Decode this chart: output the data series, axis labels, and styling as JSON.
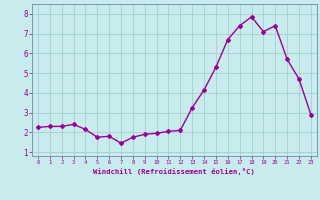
{
  "x": [
    0,
    1,
    2,
    3,
    4,
    5,
    6,
    7,
    8,
    9,
    10,
    11,
    12,
    13,
    14,
    15,
    16,
    17,
    18,
    19,
    20,
    21,
    22,
    23
  ],
  "y": [
    2.25,
    2.3,
    2.3,
    2.4,
    2.15,
    1.75,
    1.8,
    1.45,
    1.75,
    1.9,
    1.95,
    2.05,
    2.1,
    3.25,
    4.15,
    5.3,
    6.7,
    7.4,
    7.85,
    7.1,
    7.4,
    5.7,
    4.7,
    2.9
  ],
  "line_color": "#990099",
  "marker": "D",
  "markersize": 2.0,
  "linewidth": 1.0,
  "background_color": "#c8eced",
  "grid_color": "#a0c8cc",
  "xlabel": "Windchill (Refroidissement éolien,°C)",
  "xlabel_color": "#990099",
  "tick_color": "#990099",
  "ylim": [
    0.8,
    8.5
  ],
  "xlim": [
    -0.5,
    23.5
  ],
  "yticks": [
    1,
    2,
    3,
    4,
    5,
    6,
    7,
    8
  ],
  "xticks": [
    0,
    1,
    2,
    3,
    4,
    5,
    6,
    7,
    8,
    9,
    10,
    11,
    12,
    13,
    14,
    15,
    16,
    17,
    18,
    19,
    20,
    21,
    22,
    23
  ],
  "xtick_fontsize": 4.0,
  "ytick_fontsize": 5.5,
  "xlabel_fontsize": 5.2,
  "spine_color": "#7799aa"
}
